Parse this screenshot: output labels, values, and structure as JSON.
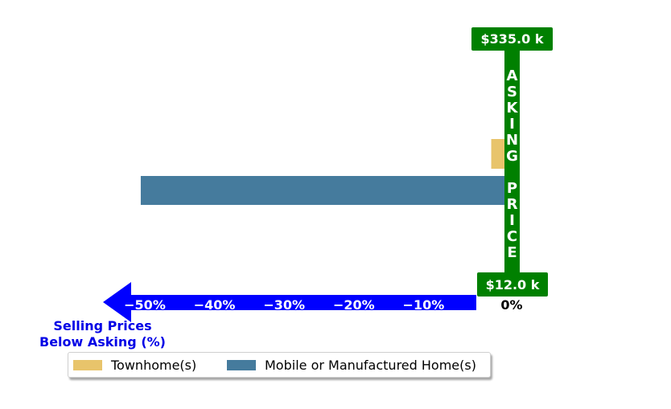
{
  "chart_data": {
    "type": "bar",
    "orientation": "horizontal",
    "x_direction": "reversed",
    "xlim": [
      -59,
      0
    ],
    "series": [
      {
        "name": "Townhome(s)",
        "values": [
          -1.9
        ],
        "color": "#e8c46b"
      },
      {
        "name": "Mobile or Manufactured Home(s)",
        "values": [
          -52.2
        ],
        "color": "#457b9d"
      }
    ],
    "x_ticks": [
      "−50%",
      "−40%",
      "−30%",
      "−20%",
      "−10%"
    ],
    "x_tick_values": [
      -50,
      -40,
      -30,
      -20,
      -10
    ],
    "zero_label": "0%",
    "xlabel_lines": [
      "Selling Prices",
      "Below Asking (%)"
    ],
    "asking_price_label": [
      "A",
      "S",
      "K",
      "I",
      "N",
      "G",
      "",
      "P",
      "R",
      "I",
      "C",
      "E"
    ],
    "asking_price_top": "$335.0 k",
    "asking_price_bottom": "$12.0 k",
    "legend_position": "bottom",
    "colors": {
      "marker": "#008000",
      "axis_arrow": "#0000ff",
      "axis_title": "#0000e6"
    }
  }
}
